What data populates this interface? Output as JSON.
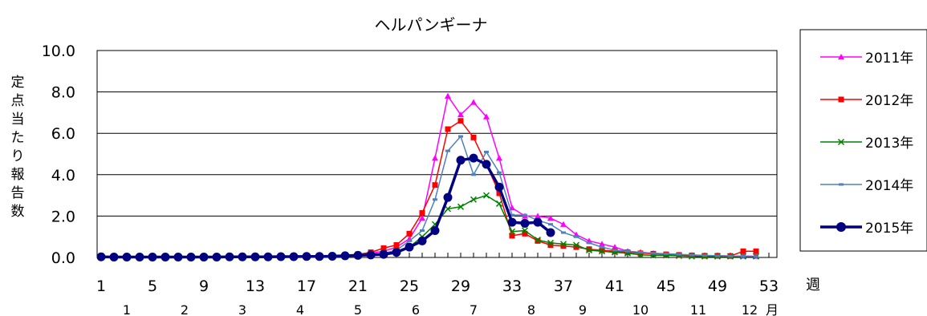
{
  "chart_data": {
    "type": "line",
    "title": "ヘルパンギーナ",
    "ylabel": "定点当たり報告数",
    "xlabel": "週",
    "month_unit": "月",
    "ylim": [
      0,
      10
    ],
    "yticks": [
      "0.0",
      "2.0",
      "4.0",
      "6.0",
      "8.0",
      "10.0"
    ],
    "ytick_values": [
      0,
      2,
      4,
      6,
      8,
      10
    ],
    "xlim": [
      1,
      53
    ],
    "xticks": [
      "1",
      "5",
      "9",
      "13",
      "17",
      "21",
      "25",
      "29",
      "33",
      "37",
      "41",
      "45",
      "49",
      "53"
    ],
    "xtick_values": [
      1,
      5,
      9,
      13,
      17,
      21,
      25,
      29,
      33,
      37,
      41,
      45,
      49,
      53
    ],
    "months": [
      {
        "label": "1",
        "week": 3
      },
      {
        "label": "2",
        "week": 7.5
      },
      {
        "label": "3",
        "week": 12
      },
      {
        "label": "4",
        "week": 16.5
      },
      {
        "label": "5",
        "week": 21
      },
      {
        "label": "6",
        "week": 25.5
      },
      {
        "label": "7",
        "week": 30
      },
      {
        "label": "8",
        "week": 34.5
      },
      {
        "label": "9",
        "week": 38.5
      },
      {
        "label": "10",
        "week": 43
      },
      {
        "label": "11",
        "week": 47.5
      },
      {
        "label": "12",
        "week": 51.5
      }
    ],
    "grid": true,
    "legend_position": "right",
    "series": [
      {
        "name": "2011年",
        "color": "#ff00ff",
        "marker": "triangle",
        "width": 1.5,
        "x": [
          1,
          2,
          3,
          4,
          5,
          6,
          7,
          8,
          9,
          10,
          11,
          12,
          13,
          14,
          15,
          16,
          17,
          18,
          19,
          20,
          21,
          22,
          23,
          24,
          25,
          26,
          27,
          28,
          29,
          30,
          31,
          32,
          33,
          34,
          35,
          36,
          37,
          38,
          39,
          40,
          41,
          42,
          43,
          44,
          45,
          46,
          47,
          48,
          49,
          50,
          51,
          52
        ],
        "y": [
          0.05,
          0.04,
          0.03,
          0.03,
          0.03,
          0.03,
          0.03,
          0.03,
          0.03,
          0.03,
          0.03,
          0.03,
          0.04,
          0.04,
          0.04,
          0.05,
          0.06,
          0.07,
          0.08,
          0.1,
          0.13,
          0.2,
          0.3,
          0.5,
          0.9,
          1.9,
          4.8,
          7.8,
          6.9,
          7.5,
          6.8,
          4.8,
          2.4,
          2.0,
          2.0,
          1.9,
          1.6,
          1.1,
          0.8,
          0.65,
          0.5,
          0.3,
          0.25,
          0.2,
          0.15,
          0.12,
          0.1,
          0.09,
          0.08,
          0.07,
          0.07,
          0.06
        ]
      },
      {
        "name": "2012年",
        "color": "#ff0000",
        "marker": "square",
        "width": 1.5,
        "x": [
          1,
          2,
          3,
          4,
          5,
          6,
          7,
          8,
          9,
          10,
          11,
          12,
          13,
          14,
          15,
          16,
          17,
          18,
          19,
          20,
          21,
          22,
          23,
          24,
          25,
          26,
          27,
          28,
          29,
          30,
          31,
          32,
          33,
          34,
          35,
          36,
          37,
          38,
          39,
          40,
          41,
          42,
          43,
          44,
          45,
          46,
          47,
          48,
          49,
          50,
          51,
          52
        ],
        "y": [
          0.04,
          0.03,
          0.03,
          0.03,
          0.02,
          0.02,
          0.02,
          0.02,
          0.02,
          0.03,
          0.03,
          0.03,
          0.03,
          0.03,
          0.04,
          0.04,
          0.05,
          0.06,
          0.08,
          0.1,
          0.15,
          0.25,
          0.45,
          0.6,
          1.15,
          2.15,
          3.5,
          6.2,
          6.6,
          5.8,
          4.5,
          3.1,
          1.05,
          1.15,
          0.8,
          0.6,
          0.55,
          0.5,
          0.4,
          0.35,
          0.3,
          0.25,
          0.2,
          0.18,
          0.15,
          0.12,
          0.1,
          0.08,
          0.08,
          0.07,
          0.3,
          0.3
        ]
      },
      {
        "name": "2013年",
        "color": "#008000",
        "marker": "x",
        "width": 1.5,
        "x": [
          1,
          2,
          3,
          4,
          5,
          6,
          7,
          8,
          9,
          10,
          11,
          12,
          13,
          14,
          15,
          16,
          17,
          18,
          19,
          20,
          21,
          22,
          23,
          24,
          25,
          26,
          27,
          28,
          29,
          30,
          31,
          32,
          33,
          34,
          35,
          36,
          37,
          38,
          39,
          40,
          41,
          42,
          43,
          44,
          45,
          46,
          47,
          48,
          49,
          50,
          51,
          52
        ],
        "y": [
          0.03,
          0.03,
          0.02,
          0.02,
          0.02,
          0.02,
          0.02,
          0.02,
          0.02,
          0.02,
          0.02,
          0.02,
          0.03,
          0.03,
          0.03,
          0.04,
          0.05,
          0.06,
          0.07,
          0.08,
          0.1,
          0.15,
          0.2,
          0.3,
          0.5,
          1.0,
          1.6,
          2.35,
          2.45,
          2.8,
          3.0,
          2.6,
          1.25,
          1.3,
          0.85,
          0.7,
          0.65,
          0.6,
          0.35,
          0.3,
          0.25,
          0.2,
          0.12,
          0.1,
          0.1,
          0.08,
          0.05,
          0.05,
          0.05,
          0.05,
          0.05,
          0.05
        ]
      },
      {
        "name": "2014年",
        "color": "#4f81bd",
        "marker": "dash",
        "width": 1.5,
        "x": [
          1,
          2,
          3,
          4,
          5,
          6,
          7,
          8,
          9,
          10,
          11,
          12,
          13,
          14,
          15,
          16,
          17,
          18,
          19,
          20,
          21,
          22,
          23,
          24,
          25,
          26,
          27,
          28,
          29,
          30,
          31,
          32,
          33,
          34,
          35,
          36,
          37,
          38,
          39,
          40,
          41,
          42,
          43,
          44,
          45,
          46,
          47,
          48,
          49,
          50,
          51,
          52
        ],
        "y": [
          0.03,
          0.03,
          0.03,
          0.02,
          0.02,
          0.02,
          0.02,
          0.02,
          0.02,
          0.02,
          0.03,
          0.03,
          0.03,
          0.03,
          0.04,
          0.04,
          0.05,
          0.06,
          0.07,
          0.08,
          0.1,
          0.15,
          0.2,
          0.35,
          0.8,
          1.3,
          2.8,
          5.15,
          5.85,
          4.0,
          5.1,
          4.1,
          2.05,
          2.05,
          1.8,
          1.6,
          1.2,
          1.0,
          0.7,
          0.5,
          0.35,
          0.3,
          0.25,
          0.2,
          0.18,
          0.15,
          0.12,
          0.1,
          0.08,
          0.07,
          0.06,
          0.05
        ]
      },
      {
        "name": "2015年",
        "color": "#000080",
        "marker": "circle",
        "width": 3.5,
        "x": [
          1,
          2,
          3,
          4,
          5,
          6,
          7,
          8,
          9,
          10,
          11,
          12,
          13,
          14,
          15,
          16,
          17,
          18,
          19,
          20,
          21,
          22,
          23,
          24,
          25,
          26,
          27,
          28,
          29,
          30,
          31,
          32,
          33,
          34,
          35,
          36
        ],
        "y": [
          0.03,
          0.02,
          0.02,
          0.02,
          0.02,
          0.02,
          0.02,
          0.02,
          0.02,
          0.02,
          0.03,
          0.03,
          0.03,
          0.03,
          0.04,
          0.04,
          0.05,
          0.05,
          0.06,
          0.08,
          0.1,
          0.12,
          0.15,
          0.25,
          0.5,
          0.8,
          1.3,
          2.9,
          4.7,
          4.8,
          4.5,
          3.4,
          1.7,
          1.65,
          1.7,
          1.2
        ]
      }
    ]
  }
}
